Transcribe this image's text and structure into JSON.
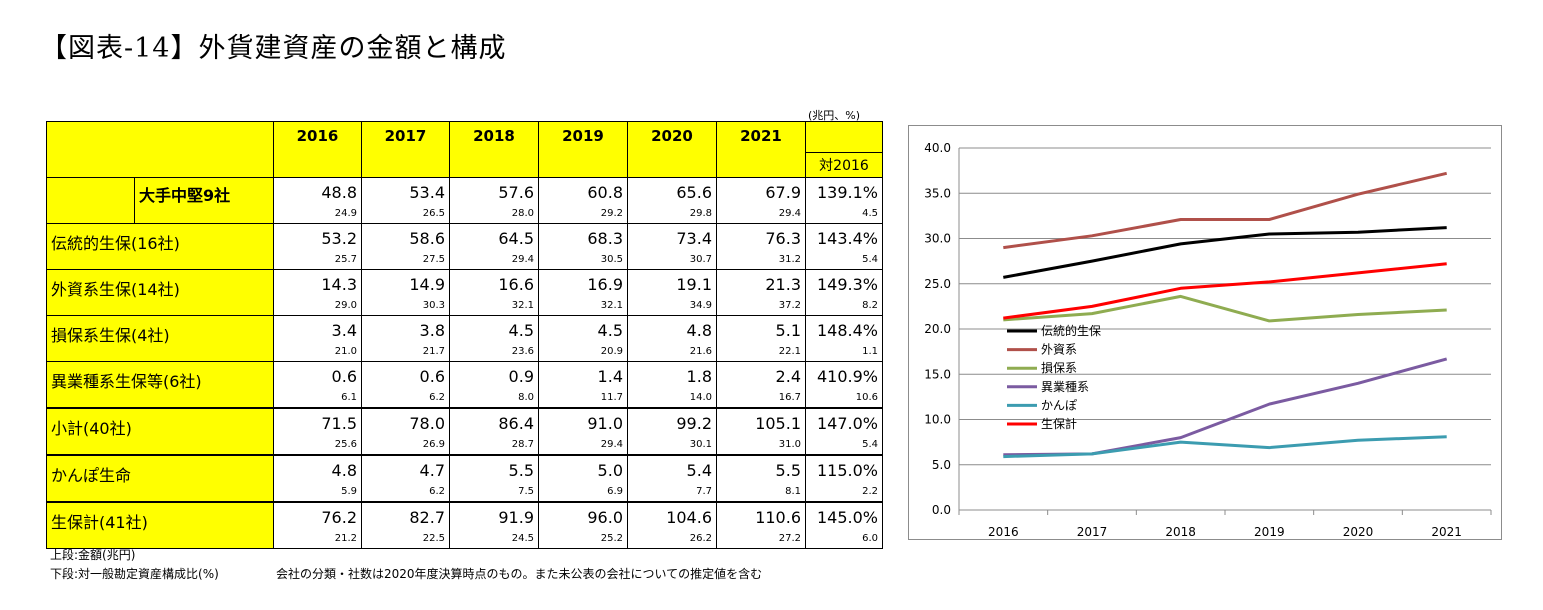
{
  "title": "【図表-14】外貨建資産の金額と構成",
  "unit_note": "(兆円、%)",
  "table": {
    "years": [
      "2016",
      "2017",
      "2018",
      "2019",
      "2020",
      "2021"
    ],
    "compare_header": "対2016",
    "rows": [
      {
        "label": "大手中堅9社",
        "amounts": [
          "48.8",
          "53.4",
          "57.6",
          "60.8",
          "65.6",
          "67.9"
        ],
        "ratio": "139.1%",
        "shares": [
          "24.9",
          "26.5",
          "28.0",
          "29.2",
          "29.8",
          "29.4"
        ],
        "share_change": "4.5"
      },
      {
        "label": "伝統的生保(16社)",
        "amounts": [
          "53.2",
          "58.6",
          "64.5",
          "68.3",
          "73.4",
          "76.3"
        ],
        "ratio": "143.4%",
        "shares": [
          "25.7",
          "27.5",
          "29.4",
          "30.5",
          "30.7",
          "31.2"
        ],
        "share_change": "5.4"
      },
      {
        "label": "外資系生保(14社)",
        "amounts": [
          "14.3",
          "14.9",
          "16.6",
          "16.9",
          "19.1",
          "21.3"
        ],
        "ratio": "149.3%",
        "shares": [
          "29.0",
          "30.3",
          "32.1",
          "32.1",
          "34.9",
          "37.2"
        ],
        "share_change": "8.2"
      },
      {
        "label": "損保系生保(4社)",
        "amounts": [
          "3.4",
          "3.8",
          "4.5",
          "4.5",
          "4.8",
          "5.1"
        ],
        "ratio": "148.4%",
        "shares": [
          "21.0",
          "21.7",
          "23.6",
          "20.9",
          "21.6",
          "22.1"
        ],
        "share_change": "1.1"
      },
      {
        "label": "異業種系生保等(6社)",
        "amounts": [
          "0.6",
          "0.6",
          "0.9",
          "1.4",
          "1.8",
          "2.4"
        ],
        "ratio": "410.9%",
        "shares": [
          "6.1",
          "6.2",
          "8.0",
          "11.7",
          "14.0",
          "16.7"
        ],
        "share_change": "10.6"
      },
      {
        "label": "小計(40社)",
        "amounts": [
          "71.5",
          "78.0",
          "86.4",
          "91.0",
          "99.2",
          "105.1"
        ],
        "ratio": "147.0%",
        "shares": [
          "25.6",
          "26.9",
          "28.7",
          "29.4",
          "30.1",
          "31.0"
        ],
        "share_change": "5.4"
      },
      {
        "label": "かんぽ生命",
        "amounts": [
          "4.8",
          "4.7",
          "5.5",
          "5.0",
          "5.4",
          "5.5"
        ],
        "ratio": "115.0%",
        "shares": [
          "5.9",
          "6.2",
          "7.5",
          "6.9",
          "7.7",
          "8.1"
        ],
        "share_change": "2.2"
      },
      {
        "label": "生保計(41社)",
        "amounts": [
          "76.2",
          "82.7",
          "91.9",
          "96.0",
          "104.6",
          "110.6"
        ],
        "ratio": "145.0%",
        "shares": [
          "21.2",
          "22.5",
          "24.5",
          "25.2",
          "26.2",
          "27.2"
        ],
        "share_change": "6.0"
      }
    ]
  },
  "notes": {
    "line1": "上段:金額(兆円)",
    "line2": "下段:対一般勘定資産構成比(%)",
    "line3": "会社の分類・社数は2020年度決算時点のもの。また未公表の会社についての推定値を含む"
  },
  "chart_data": {
    "type": "line",
    "title": "",
    "xlabel": "",
    "ylabel": "",
    "categories": [
      "2016",
      "2017",
      "2018",
      "2019",
      "2020",
      "2021"
    ],
    "ylim": [
      0,
      40
    ],
    "yticks": [
      "0.0",
      "5.0",
      "10.0",
      "15.0",
      "20.0",
      "25.0",
      "30.0",
      "35.0",
      "40.0"
    ],
    "grid": true,
    "legend_position": "middle-left",
    "series": [
      {
        "name": "伝統的生保",
        "color": "#000000",
        "values": [
          25.7,
          27.5,
          29.4,
          30.5,
          30.7,
          31.2
        ]
      },
      {
        "name": "外資系",
        "color": "#b0504a",
        "values": [
          29.0,
          30.3,
          32.1,
          32.1,
          34.9,
          37.2
        ]
      },
      {
        "name": "損保系",
        "color": "#8fac51",
        "values": [
          21.0,
          21.7,
          23.6,
          20.9,
          21.6,
          22.1
        ]
      },
      {
        "name": "異業種系",
        "color": "#7b5ba1",
        "values": [
          6.1,
          6.2,
          8.0,
          11.7,
          14.0,
          16.7
        ]
      },
      {
        "name": "かんぽ",
        "color": "#3c9cb0",
        "values": [
          5.9,
          6.2,
          7.5,
          6.9,
          7.7,
          8.1
        ]
      },
      {
        "name": "生保計",
        "color": "#ff0000",
        "values": [
          21.2,
          22.5,
          24.5,
          25.2,
          26.2,
          27.2
        ]
      }
    ]
  }
}
